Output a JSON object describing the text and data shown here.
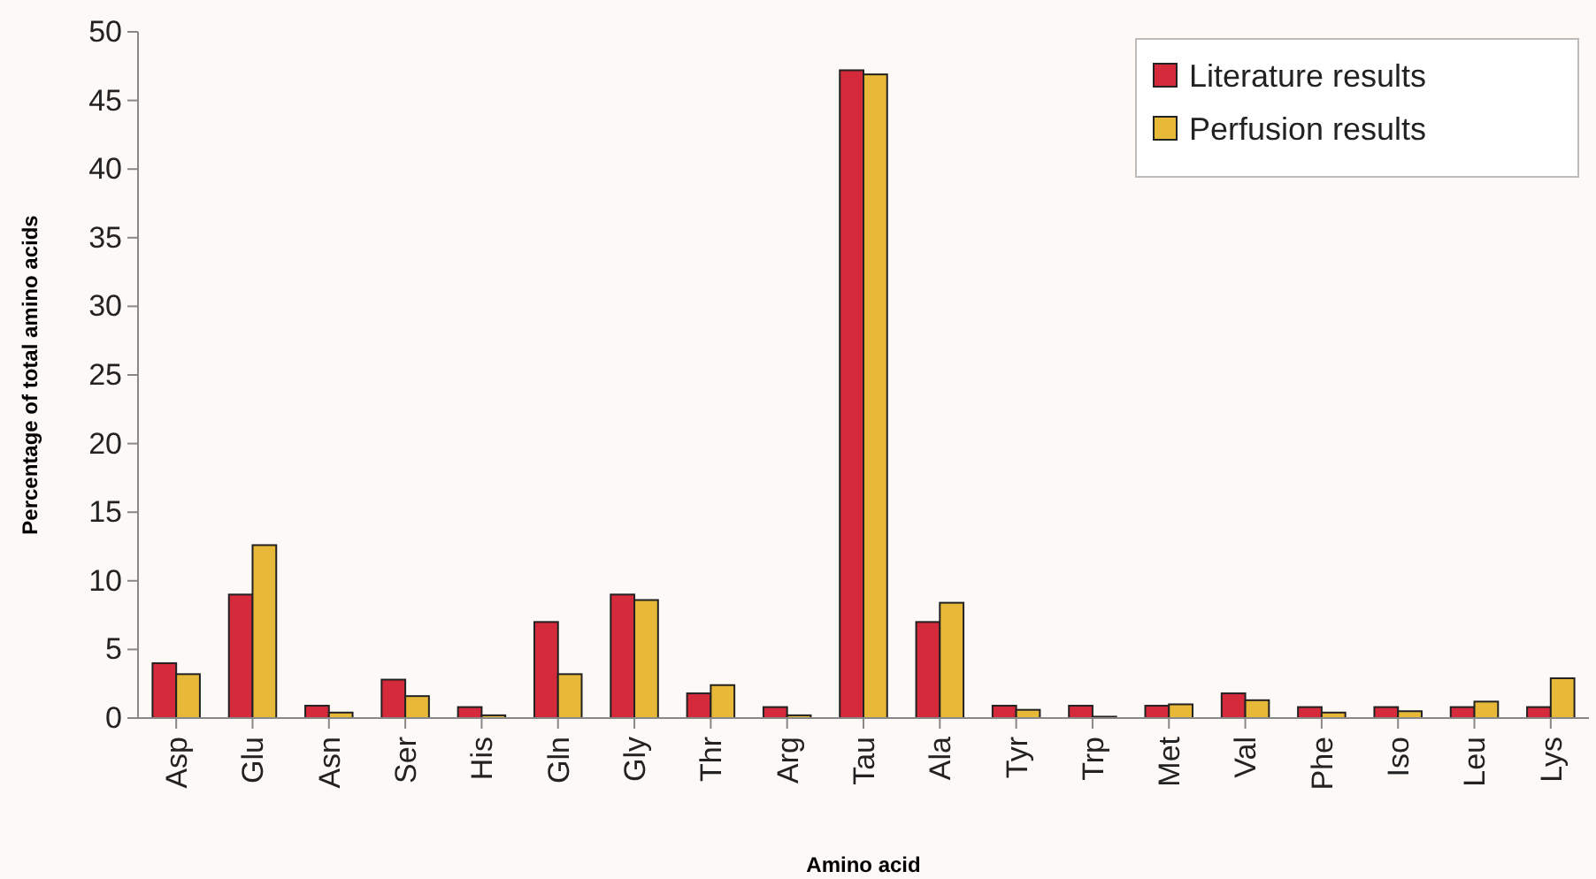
{
  "chart_data": {
    "type": "bar",
    "xlabel": "Amino acid",
    "ylabel": "Percentage of total amino acids",
    "categories": [
      "Asp",
      "Glu",
      "Asn",
      "Ser",
      "His",
      "Gln",
      "Gly",
      "Thr",
      "Arg",
      "Tau",
      "Ala",
      "Tyr",
      "Trp",
      "Met",
      "Val",
      "Phe",
      "Iso",
      "Leu",
      "Lys"
    ],
    "series": [
      {
        "name": "Literature results",
        "color": "#d42a3c",
        "values": [
          4,
          9,
          0.9,
          2.8,
          0.8,
          7,
          9,
          1.8,
          0.8,
          47.2,
          7,
          0.9,
          0.9,
          0.9,
          1.8,
          0.8,
          0.8,
          0.8,
          0.8
        ]
      },
      {
        "name": "Perfusion results",
        "color": "#e8b838",
        "values": [
          3.2,
          12.6,
          0.4,
          1.6,
          0.2,
          3.2,
          8.6,
          2.4,
          0.2,
          46.9,
          8.4,
          0.6,
          0.1,
          1,
          1.3,
          0.4,
          0.5,
          1.2,
          2.9
        ]
      }
    ],
    "ylim": [
      0,
      50
    ],
    "yticks": [
      0,
      5,
      10,
      15,
      20,
      25,
      30,
      35,
      40,
      45,
      50
    ],
    "grid": false,
    "legend": "top right"
  }
}
